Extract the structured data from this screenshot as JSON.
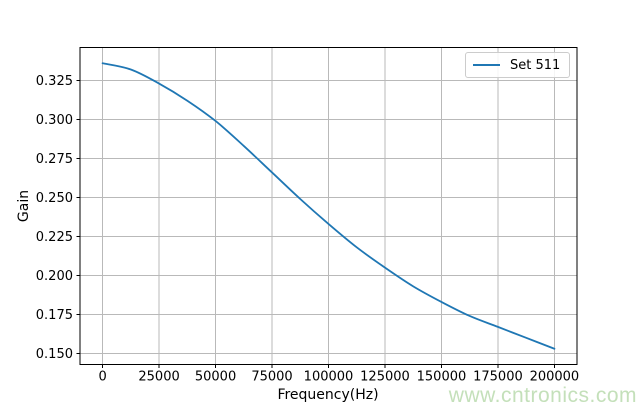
{
  "chart_data": {
    "type": "line",
    "title": "",
    "xlabel": "Frequency(Hz)",
    "ylabel": "Gain",
    "x_tick_labels": [
      "0",
      "25000",
      "50000",
      "75000",
      "100000",
      "125000",
      "150000",
      "175000",
      "200000"
    ],
    "y_tick_labels": [
      "0.150",
      "0.175",
      "0.200",
      "0.225",
      "0.250",
      "0.275",
      "0.300",
      "0.325"
    ],
    "xlim": [
      -10000,
      210000
    ],
    "ylim": [
      0.1429,
      0.3461
    ],
    "grid": true,
    "legend_position": "upper-right",
    "series": [
      {
        "name": "Set 511",
        "color": "#1f77b4",
        "x": [
          0,
          12500,
          25000,
          37500,
          50000,
          62500,
          75000,
          87500,
          100000,
          112500,
          125000,
          137500,
          150000,
          162500,
          175000,
          187500,
          200000
        ],
        "y": [
          0.336,
          0.332,
          0.323,
          0.312,
          0.299,
          0.283,
          0.266,
          0.249,
          0.233,
          0.218,
          0.205,
          0.193,
          0.183,
          0.174,
          0.167,
          0.16,
          0.153
        ]
      }
    ]
  },
  "watermark": {
    "text": "www.cntronics.com",
    "color": "#c4e0ba"
  },
  "colors": {
    "grid": "#b9b9b9",
    "spine": "#000000",
    "tick_label": "#000000",
    "background": "#ffffff"
  }
}
